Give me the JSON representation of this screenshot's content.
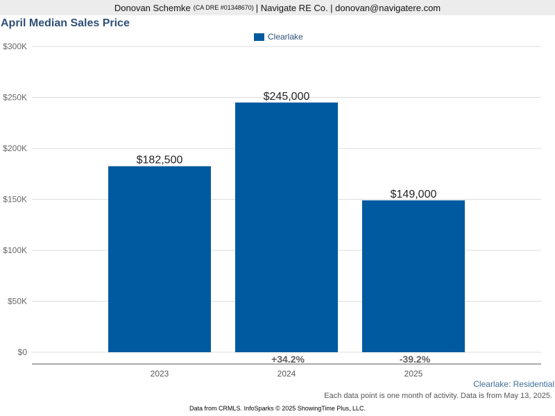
{
  "header": {
    "agent_name": "Donovan Schemke",
    "license": "(CA DRE #01348670)",
    "rest": "| Navigate RE Co. | donovan@navigatere.com"
  },
  "chart_data": {
    "type": "bar",
    "title": "April Median Sales Price",
    "categories": [
      "2023",
      "2024",
      "2025"
    ],
    "series": [
      {
        "name": "Clearlake",
        "values": [
          182500,
          245000,
          149000
        ]
      }
    ],
    "data_labels": [
      "$182,500",
      "$245,000",
      "$149,000"
    ],
    "change_labels": [
      "",
      "+34.2%",
      "-39.2%"
    ],
    "ylim": [
      0,
      300000
    ],
    "yticks": [
      0,
      50000,
      100000,
      150000,
      200000,
      250000,
      300000
    ],
    "ytick_labels": [
      "$0",
      "$50K",
      "$100K",
      "$150K",
      "$200K",
      "$250K",
      "$300K"
    ],
    "xlabel": "",
    "ylabel": "",
    "grid": true,
    "legend_position": "top-center",
    "color": "#005aa0"
  },
  "series_tag": "Clearlake: Residential",
  "note": "Each data point is one month of activity. Data is from May 13, 2025.",
  "footer": "Data from CRMLS. InfoSparks © 2025 ShowingTime Plus, LLC."
}
